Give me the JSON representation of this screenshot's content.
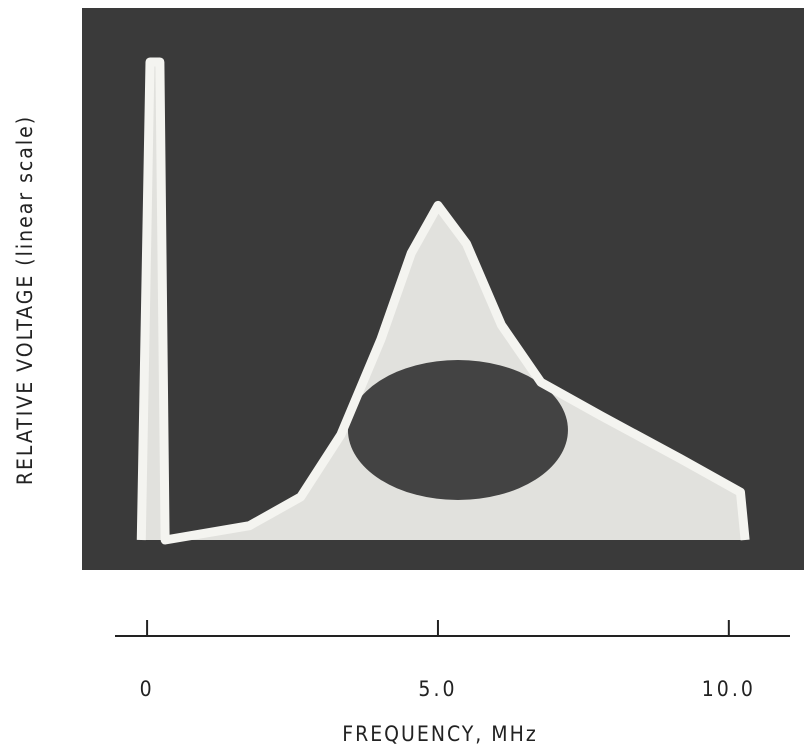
{
  "chart_data": {
    "type": "area",
    "y_label": "RELATIVE VOLTAGE (linear scale)",
    "x_label": "FREQUENCY, MHz",
    "x": [
      -0.1,
      0.05,
      0.22,
      0.31,
      1.76,
      2.64,
      3.33,
      4.02,
      4.54,
      5.0,
      5.49,
      6.09,
      6.77,
      7.8,
      9.17,
      10.2,
      10.28
    ],
    "series": [
      {
        "color": "#f4f4f0",
        "values": [
          0,
          1.0,
          1.0,
          0,
          0.03,
          0.09,
          0.22,
          0.42,
          0.6,
          0.7,
          0.62,
          0.45,
          0.33,
          0.26,
          0.17,
          0.1,
          0
        ]
      }
    ],
    "xlim": [
      -0.5,
      11
    ],
    "xticks": [
      0,
      {
        "value": 5,
        "label": "5.0"
      },
      {
        "value": 10,
        "label": "10.0"
      }
    ],
    "ylim": [
      0,
      1
    ],
    "background": "#3a3a3a"
  }
}
